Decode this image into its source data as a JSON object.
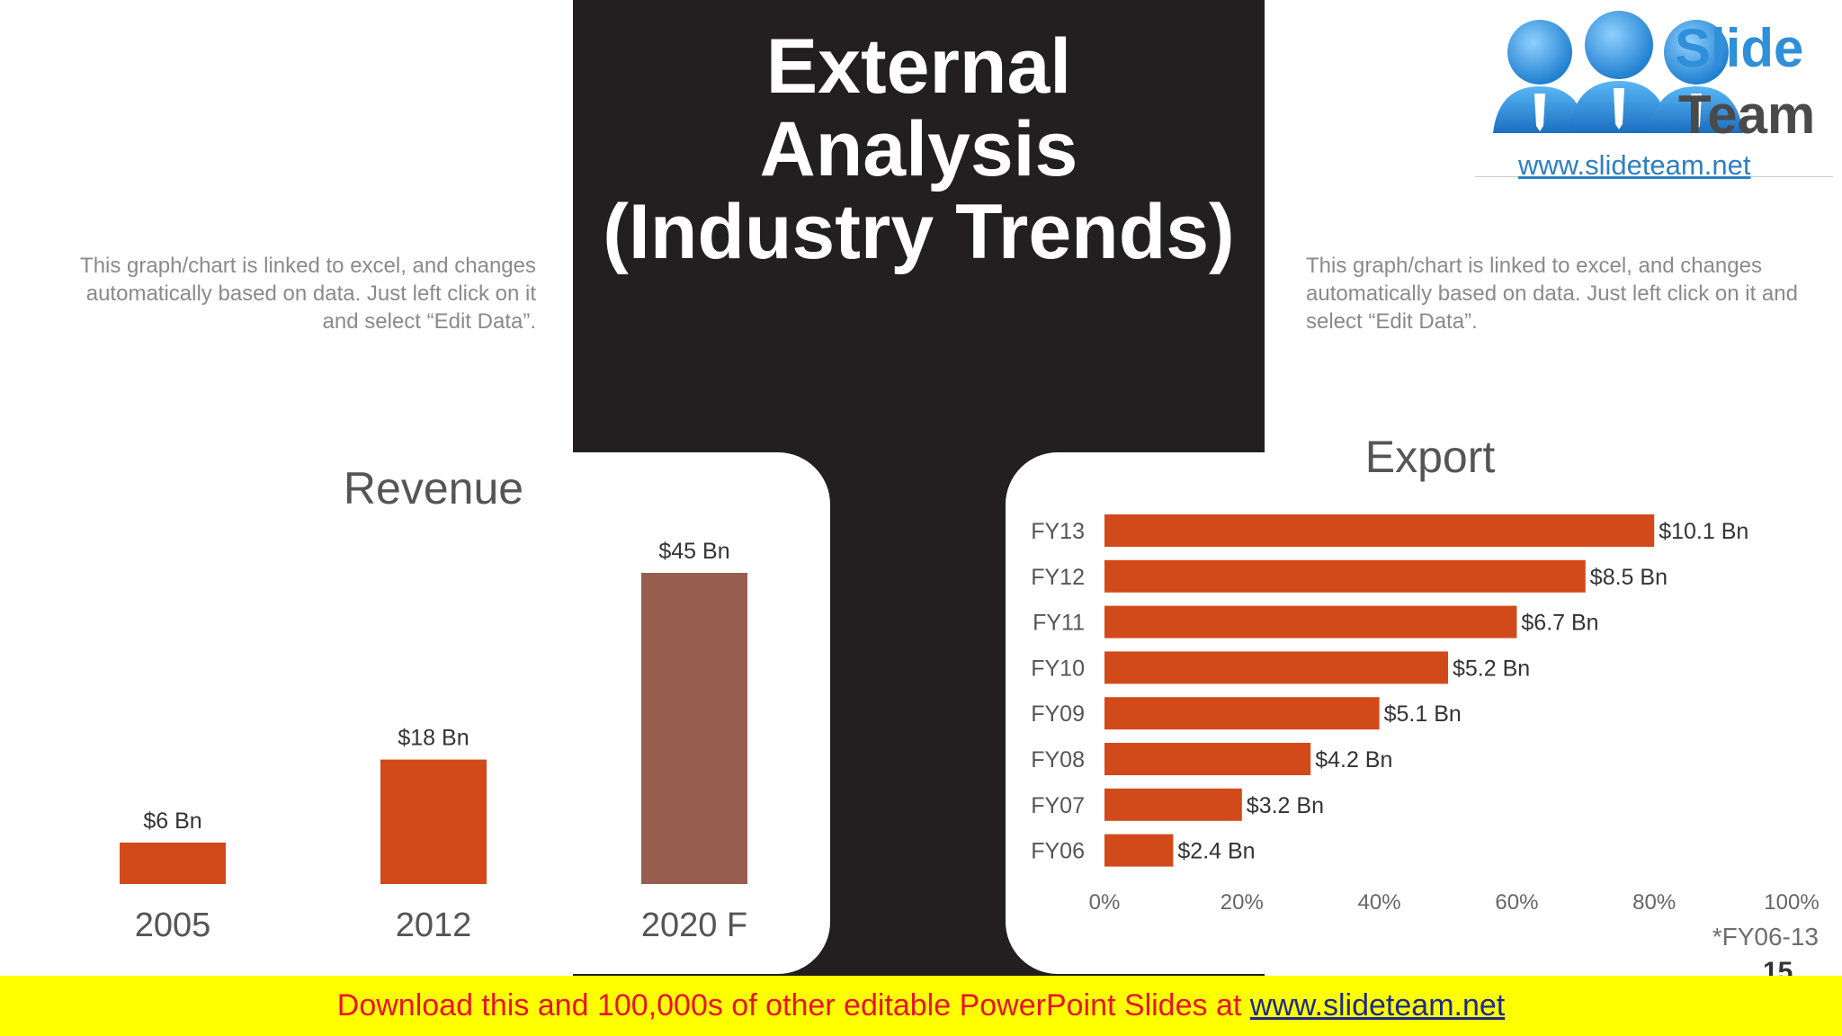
{
  "slide": {
    "title_lines": [
      "External",
      "Analysis",
      "(Industry Trends)"
    ],
    "note_left": "This graph/chart is linked to excel, and changes automatically based on data. Just left click on it and select “Edit Data”.",
    "note_right": "This graph/chart is linked to excel, and changes automatically based on data. Just left click on it and select “Edit Data”.",
    "footnote": "*FY06-13",
    "page_number": "15"
  },
  "logo": {
    "word1": "Slide",
    "word2": "Team",
    "url": "www.slideteam.net",
    "icon": "people-icon"
  },
  "banner": {
    "text": "Download this and 100,000s of other editable PowerPoint Slides at ",
    "link": "www.slideteam.net"
  },
  "colors": {
    "dark": "#231f20",
    "orange": "#d24a1a",
    "brown": "#965e4f",
    "banner_bg": "#ffff00",
    "banner_text": "#e8132a",
    "logo_blue": "#2f8fd8"
  },
  "chart_data": [
    {
      "type": "bar",
      "title": "Revenue",
      "categories": [
        "2005",
        "2012",
        "2020 F"
      ],
      "values": [
        6,
        18,
        45
      ],
      "data_labels": [
        "$6 Bn",
        "$18 Bn",
        "$45 Bn"
      ],
      "bar_colors": [
        "#d24a1a",
        "#d24a1a",
        "#965e4f"
      ],
      "ylim": [
        0,
        50
      ],
      "grid": false
    },
    {
      "type": "bar",
      "orientation": "horizontal",
      "title": "Export",
      "categories": [
        "FY13",
        "FY12",
        "FY11",
        "FY10",
        "FY09",
        "FY08",
        "FY07",
        "FY06"
      ],
      "values": [
        80,
        70,
        60,
        50,
        40,
        30,
        20,
        10
      ],
      "data_labels": [
        "$10.1 Bn",
        "$8.5 Bn",
        "$6.7 Bn",
        "$5.2 Bn",
        "$5.1 Bn",
        "$4.2 Bn",
        "$3.2 Bn",
        "$2.4 Bn"
      ],
      "x_ticks": [
        "0%",
        "20%",
        "40%",
        "60%",
        "80%",
        "100%"
      ],
      "xlim": [
        0,
        100
      ],
      "bar_color": "#d24a1a",
      "grid": false
    }
  ]
}
